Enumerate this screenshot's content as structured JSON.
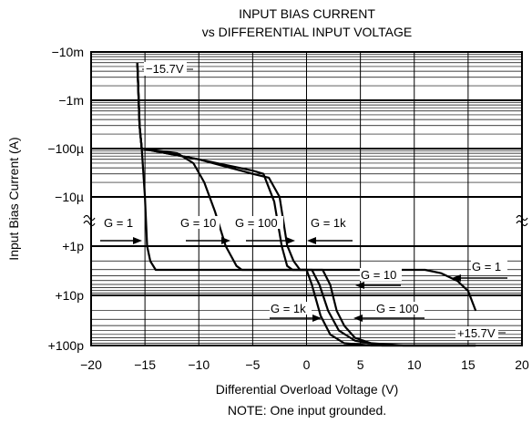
{
  "chart_data": {
    "type": "line",
    "title_line1": "INPUT BIAS CURRENT",
    "title_line2": "vs DIFFERENTIAL INPUT VOLTAGE",
    "xlabel": "Differential Overload Voltage (V)",
    "ylabel": "Input Bias Current (A)",
    "note": "NOTE: One input grounded.",
    "xlim": [
      -20,
      20
    ],
    "x_ticks": [
      "−20",
      "−15",
      "−10",
      "−5",
      "0",
      "5",
      "10",
      "15",
      "20"
    ],
    "y_ticks": [
      "−10m",
      "−1m",
      "−100µ",
      "−10µ",
      "+1p",
      "+10p",
      "+100p"
    ],
    "y_scale": "symmetric log (negative log decades on top, broken scale at zero, positive log decades below)",
    "grid": true,
    "series": [
      {
        "name": "G = 1",
        "points": [
          [
            -15.7,
            -0.006
          ],
          [
            -15.5,
            -0.0003
          ],
          [
            -15.3,
            -0.0001
          ],
          [
            -15.0,
            -1e-05
          ],
          [
            -14.8,
            1e-12
          ],
          [
            -14.5,
            2e-12
          ],
          [
            -14.0,
            3e-12
          ],
          [
            11.0,
            3e-12
          ],
          [
            12.5,
            3.5e-12
          ],
          [
            14.0,
            5e-12
          ],
          [
            15.0,
            8e-12
          ],
          [
            15.7,
            2e-11
          ]
        ]
      },
      {
        "name": "G = 10",
        "points": [
          [
            -15.7,
            -0.006
          ],
          [
            -15.5,
            -0.0003
          ],
          [
            -15.3,
            -0.0001
          ],
          [
            -12.0,
            -8e-05
          ],
          [
            -10.5,
            -5e-05
          ],
          [
            -9.5,
            -2e-05
          ],
          [
            -8.5,
            -5e-06
          ],
          [
            -7.5,
            1e-12
          ],
          [
            -6.5,
            2.5e-12
          ],
          [
            -6.0,
            3e-12
          ],
          [
            1.5,
            3e-12
          ],
          [
            2.2,
            6e-12
          ],
          [
            2.8,
            2e-11
          ],
          [
            3.5,
            4e-11
          ],
          [
            4.5,
            7e-11
          ],
          [
            6.0,
            9e-11
          ],
          [
            9.0,
            1e-10
          ],
          [
            15.7,
            1e-10
          ]
        ]
      },
      {
        "name": "G = 100",
        "points": [
          [
            -15.7,
            -0.006
          ],
          [
            -15.5,
            -0.0003
          ],
          [
            -15.3,
            -0.0001
          ],
          [
            -10.0,
            -6e-05
          ],
          [
            -5.0,
            -3.5e-05
          ],
          [
            -4.0,
            -3e-05
          ],
          [
            -3.0,
            -8e-06
          ],
          [
            -2.3,
            1e-12
          ],
          [
            -1.8,
            2.5e-12
          ],
          [
            -1.3,
            3e-12
          ],
          [
            0.5,
            3e-12
          ],
          [
            1.2,
            6e-12
          ],
          [
            2.0,
            2e-11
          ],
          [
            3.0,
            5e-11
          ],
          [
            4.5,
            8e-11
          ],
          [
            7.0,
            1e-10
          ],
          [
            15.7,
            1e-10
          ]
        ]
      },
      {
        "name": "G = 1k",
        "points": [
          [
            -15.7,
            -0.006
          ],
          [
            -15.5,
            -0.0003
          ],
          [
            -15.3,
            -0.0001
          ],
          [
            -10.0,
            -6e-05
          ],
          [
            -5.0,
            -3e-05
          ],
          [
            -3.5,
            -2.5e-05
          ],
          [
            -2.5,
            -1e-05
          ],
          [
            -1.8,
            -1e-06
          ],
          [
            -1.2,
            2e-12
          ],
          [
            -0.6,
            3e-12
          ],
          [
            0.0,
            3e-12
          ],
          [
            0.5,
            6e-12
          ],
          [
            1.3,
            2.5e-11
          ],
          [
            2.2,
            6e-11
          ],
          [
            3.5,
            9e-11
          ],
          [
            6.0,
            1e-10
          ],
          [
            15.7,
            1e-10
          ]
        ]
      }
    ],
    "labels": {
      "rail_neg": "−15.7V",
      "rail_pos": "+15.7V",
      "g1": "G = 1",
      "g10": "G = 10",
      "g100": "G = 100",
      "g1k": "G = 1k"
    }
  }
}
